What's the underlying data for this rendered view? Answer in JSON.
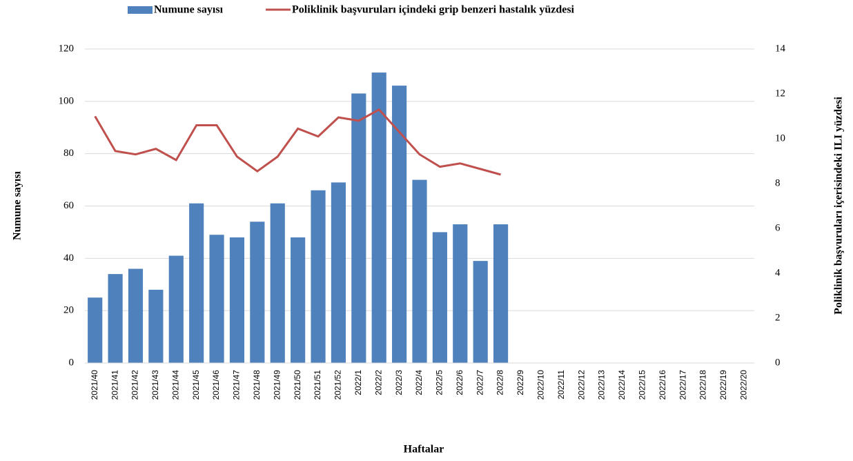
{
  "chart_data": {
    "type": "bar-line",
    "legend": "top",
    "grid": true,
    "x_label": "Haftalar",
    "y_label": "Numune sayısı",
    "y2_label": "Poliklinik başvuruları içerisindeki ILI yüzdesi",
    "categories": [
      "2021/40",
      "2021/41",
      "2021/42",
      "2021/43",
      "2021/44",
      "2021/45",
      "2021/46",
      "2021/47",
      "2021/48",
      "2021/49",
      "2021/50",
      "2021/51",
      "2021/52",
      "2022/1",
      "2022/2",
      "2022/3",
      "2022/4",
      "2022/5",
      "2022/6",
      "2022/7",
      "2022/8",
      "2022/9",
      "2022/10",
      "2022/11",
      "2022/12",
      "2022/13",
      "2022/14",
      "2022/15",
      "2022/16",
      "2022/17",
      "2022/18",
      "2022/19",
      "2022/20"
    ],
    "series": [
      {
        "name": "Numune sayısı",
        "type": "bar",
        "color": "#4f81bd",
        "values": [
          25,
          34,
          36,
          28,
          41,
          61,
          49,
          48,
          54,
          61,
          48,
          66,
          69,
          103,
          111,
          106,
          70,
          50,
          53,
          39,
          53,
          null,
          null,
          null,
          null,
          null,
          null,
          null,
          null,
          null,
          null,
          null,
          null
        ]
      },
      {
        "name": "Poliklinik başvuruları içindeki grip benzeri hastalık yüzdesi",
        "type": "line",
        "axis": "y2",
        "color": "#c0504d",
        "values": [
          11.0,
          9.45,
          9.3,
          9.55,
          9.05,
          10.6,
          10.6,
          9.2,
          8.55,
          9.2,
          10.45,
          10.1,
          10.95,
          10.8,
          11.3,
          10.3,
          9.3,
          8.75,
          8.9,
          8.65,
          8.4,
          null,
          null,
          null,
          null,
          null,
          null,
          null,
          null,
          null,
          null,
          null,
          null
        ]
      }
    ],
    "ylim": [
      0,
      120
    ],
    "yticks": [
      0,
      20,
      40,
      60,
      80,
      100,
      120
    ],
    "y2lim": [
      0,
      14
    ],
    "y2ticks": [
      0,
      2,
      4,
      6,
      8,
      10,
      12,
      14
    ]
  }
}
